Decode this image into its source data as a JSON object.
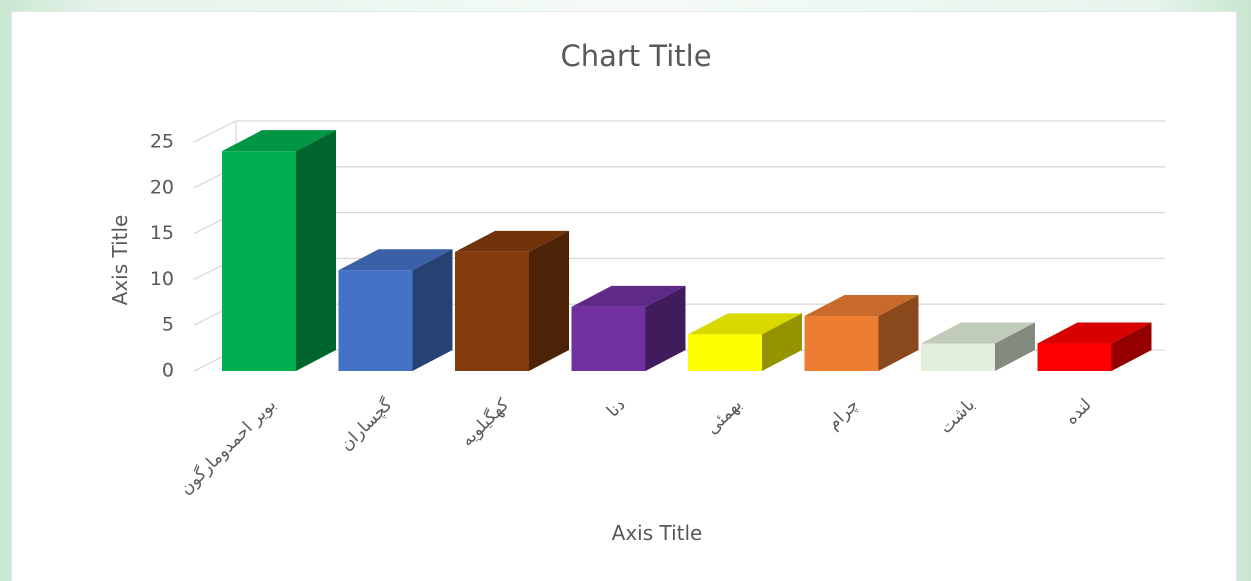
{
  "chart_data": {
    "type": "bar",
    "title": "Chart Title",
    "xlabel": "Axis Title",
    "ylabel": "Axis Title",
    "ylim": [
      0,
      25
    ],
    "yticks": [
      0,
      5,
      10,
      15,
      20,
      25
    ],
    "grid": true,
    "categories": [
      "بویر احمدومارگون",
      "گچساران",
      "کهگیلویه",
      "دنا",
      "بهمئی",
      "چرام",
      "باشت",
      "لنده"
    ],
    "values": [
      24,
      11,
      13,
      7,
      4,
      6,
      3,
      3
    ],
    "colors": [
      "#00b050",
      "#4472c4",
      "#843c0c",
      "#7030a0",
      "#ffff00",
      "#ed7d31",
      "#e2efda",
      "#ff0000"
    ]
  }
}
